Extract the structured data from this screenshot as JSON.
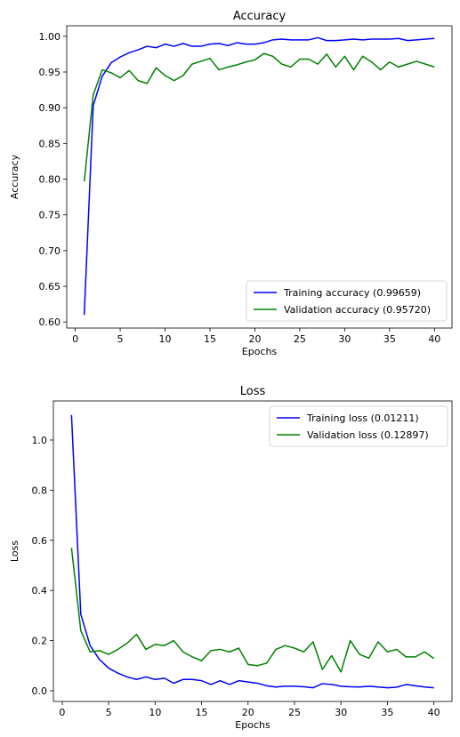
{
  "chart_data": [
    {
      "type": "line",
      "title": "Accuracy",
      "xlabel": "Epochs",
      "ylabel": "Accuracy",
      "xlim": [
        -0.95,
        41.95
      ],
      "ylim": [
        0.5916,
        1.0147
      ],
      "xticks": [
        0,
        5,
        10,
        15,
        20,
        25,
        30,
        35,
        40
      ],
      "yticks": [
        0.6,
        0.65,
        0.7,
        0.75,
        0.8,
        0.85,
        0.9,
        0.95,
        1.0
      ],
      "ytick_labels": [
        "0.60",
        "0.65",
        "0.70",
        "0.75",
        "0.80",
        "0.85",
        "0.90",
        "0.95",
        "1.00"
      ],
      "xtick_labels": [
        "0",
        "5",
        "10",
        "15",
        "20",
        "25",
        "30",
        "35",
        "40"
      ],
      "grid": false,
      "legend_position": "bottom-right",
      "x": [
        1,
        2,
        3,
        4,
        5,
        6,
        7,
        8,
        9,
        10,
        11,
        12,
        13,
        14,
        15,
        16,
        17,
        18,
        19,
        20,
        21,
        22,
        23,
        24,
        25,
        26,
        27,
        28,
        29,
        30,
        31,
        32,
        33,
        34,
        35,
        36,
        37,
        38,
        39,
        40
      ],
      "series": [
        {
          "name": "Training accuracy (0.99659)",
          "color": "#0000ff",
          "values": [
            0.61,
            0.903,
            0.944,
            0.963,
            0.971,
            0.977,
            0.981,
            0.986,
            0.984,
            0.989,
            0.986,
            0.99,
            0.986,
            0.986,
            0.989,
            0.99,
            0.987,
            0.991,
            0.989,
            0.989,
            0.991,
            0.995,
            0.996,
            0.995,
            0.995,
            0.995,
            0.998,
            0.994,
            0.994,
            0.995,
            0.996,
            0.995,
            0.996,
            0.996,
            0.996,
            0.997,
            0.994,
            0.995,
            0.996,
            0.997
          ]
        },
        {
          "name": "Validation accuracy (0.95720)",
          "color": "#008000",
          "values": [
            0.797,
            0.918,
            0.953,
            0.949,
            0.942,
            0.952,
            0.938,
            0.934,
            0.956,
            0.945,
            0.938,
            0.945,
            0.961,
            0.965,
            0.969,
            0.953,
            0.957,
            0.96,
            0.964,
            0.967,
            0.976,
            0.972,
            0.961,
            0.957,
            0.968,
            0.968,
            0.961,
            0.975,
            0.957,
            0.972,
            0.953,
            0.972,
            0.964,
            0.953,
            0.964,
            0.957,
            0.961,
            0.965,
            0.961,
            0.957
          ]
        }
      ]
    },
    {
      "type": "line",
      "title": "Loss",
      "xlabel": "Epochs",
      "ylabel": "Loss",
      "xlim": [
        -0.95,
        41.95
      ],
      "ylim": [
        -0.0427,
        1.1559
      ],
      "xticks": [
        0,
        5,
        10,
        15,
        20,
        25,
        30,
        35,
        40
      ],
      "yticks": [
        0.0,
        0.2,
        0.4,
        0.6,
        0.8,
        1.0
      ],
      "ytick_labels": [
        "0.0",
        "0.2",
        "0.4",
        "0.6",
        "0.8",
        "1.0"
      ],
      "xtick_labels": [
        "0",
        "5",
        "10",
        "15",
        "20",
        "25",
        "30",
        "35",
        "40"
      ],
      "grid": false,
      "legend_position": "top-right",
      "x": [
        1,
        2,
        3,
        4,
        5,
        6,
        7,
        8,
        9,
        10,
        11,
        12,
        13,
        14,
        15,
        16,
        17,
        18,
        19,
        20,
        21,
        22,
        23,
        24,
        25,
        26,
        27,
        28,
        29,
        30,
        31,
        32,
        33,
        34,
        35,
        36,
        37,
        38,
        39,
        40
      ],
      "series": [
        {
          "name": "Training loss (0.01211)",
          "color": "#0000ff",
          "values": [
            1.1,
            0.305,
            0.18,
            0.125,
            0.09,
            0.07,
            0.055,
            0.045,
            0.055,
            0.045,
            0.05,
            0.03,
            0.045,
            0.045,
            0.04,
            0.025,
            0.04,
            0.025,
            0.04,
            0.035,
            0.03,
            0.02,
            0.015,
            0.018,
            0.018,
            0.016,
            0.012,
            0.028,
            0.025,
            0.018,
            0.016,
            0.015,
            0.018,
            0.015,
            0.012,
            0.014,
            0.025,
            0.02,
            0.015,
            0.012
          ]
        },
        {
          "name": "Validation loss (0.12897)",
          "color": "#008000",
          "values": [
            0.57,
            0.24,
            0.155,
            0.16,
            0.145,
            0.165,
            0.19,
            0.225,
            0.165,
            0.185,
            0.18,
            0.2,
            0.155,
            0.135,
            0.12,
            0.16,
            0.165,
            0.155,
            0.17,
            0.105,
            0.1,
            0.11,
            0.165,
            0.18,
            0.17,
            0.155,
            0.195,
            0.085,
            0.14,
            0.075,
            0.2,
            0.145,
            0.13,
            0.195,
            0.155,
            0.165,
            0.135,
            0.135,
            0.155,
            0.129
          ]
        }
      ]
    }
  ]
}
